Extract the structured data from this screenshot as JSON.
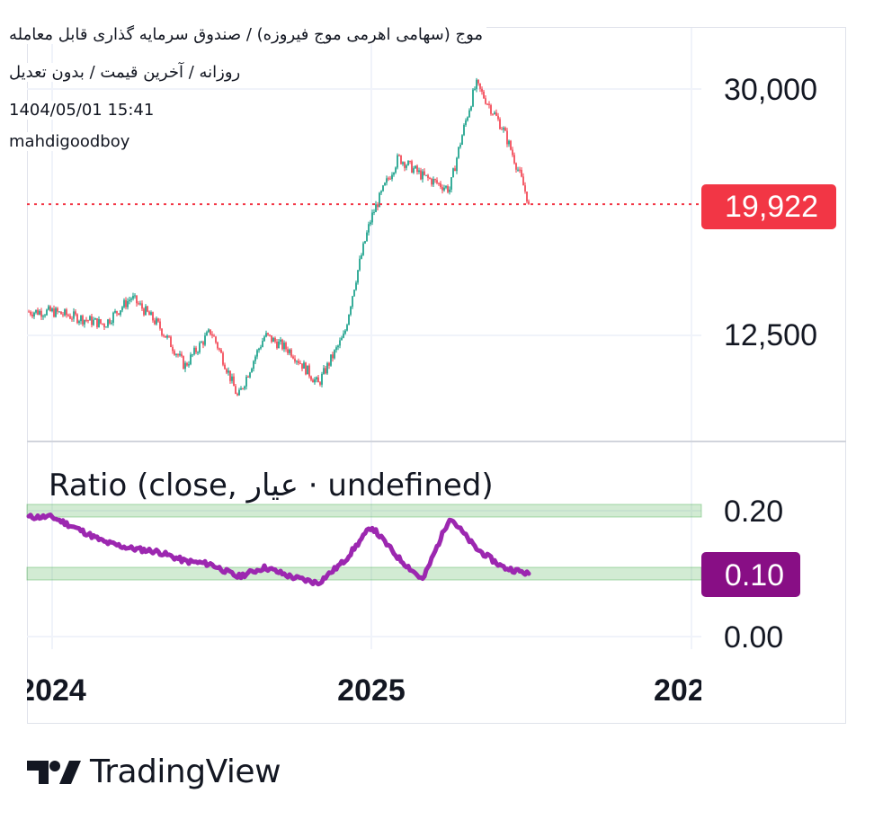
{
  "header": {
    "symbol_line": "موج (سهامی اهرمی موج فیروزه) / صندوق سرمایه گذاری قابل معامله",
    "interval_line": "روزانه / آخرین قیمت / بدون تعدیل",
    "datetime": "1404/05/01 15:41",
    "author": "mahdigoodboy"
  },
  "price_pane": {
    "y_ticks": [
      "30,000",
      "12,500"
    ],
    "last_price_label": "19,922",
    "colors": {
      "up": "#089981",
      "down": "#f23645",
      "last_price": "#f23645"
    }
  },
  "ratio_pane": {
    "title": "Ratio (close, عیار · undefined)",
    "y_ticks": [
      "0.20",
      "0.00"
    ],
    "last_value_label": "0.10",
    "colors": {
      "line": "#9c27b0",
      "band": "#4caf50",
      "last_value": "#880e85"
    }
  },
  "x_axis": {
    "labels": [
      "2024",
      "2025",
      "202"
    ]
  },
  "brand": {
    "name": "TradingView"
  },
  "chart_data": [
    {
      "type": "candlestick",
      "scale": "log",
      "x": [
        "2024-01-01",
        "2024-02-01",
        "2024-03-01",
        "2024-04-01",
        "2024-05-01",
        "2024-06-01",
        "2024-07-01",
        "2024-08-01",
        "2024-09-01",
        "2024-10-01",
        "2024-11-01",
        "2024-12-01",
        "2025-01-01",
        "2025-02-01",
        "2025-03-01",
        "2025-04-01",
        "2025-05-01",
        "2025-06-01",
        "2025-07-01"
      ],
      "close": [
        13600,
        13300,
        13000,
        14300,
        13000,
        11200,
        12700,
        10000,
        12500,
        11800,
        10500,
        12500,
        19000,
        23500,
        22000,
        21000,
        30500,
        26000,
        19922
      ],
      "last_price": 19922,
      "y_ticks": [
        30000,
        12500
      ]
    },
    {
      "type": "line",
      "series": [
        {
          "name": "Ratio",
          "values": [
            0.19,
            0.17,
            0.15,
            0.14,
            0.135,
            0.12,
            0.115,
            0.095,
            0.11,
            0.095,
            0.085,
            0.12,
            0.175,
            0.125,
            0.09,
            0.19,
            0.14,
            0.11,
            0.1
          ]
        }
      ],
      "x": [
        "2024-01-01",
        "2024-02-01",
        "2024-03-01",
        "2024-04-01",
        "2024-05-01",
        "2024-06-01",
        "2024-07-01",
        "2024-08-01",
        "2024-09-01",
        "2024-10-01",
        "2024-11-01",
        "2024-12-01",
        "2025-01-01",
        "2025-02-01",
        "2025-03-01",
        "2025-04-01",
        "2025-05-01",
        "2025-06-01",
        "2025-07-01"
      ],
      "bands": [
        [
          0.09,
          0.11
        ],
        [
          0.19,
          0.21
        ]
      ],
      "last_value": 0.1,
      "y_ticks": [
        0.2,
        0.0
      ]
    }
  ]
}
